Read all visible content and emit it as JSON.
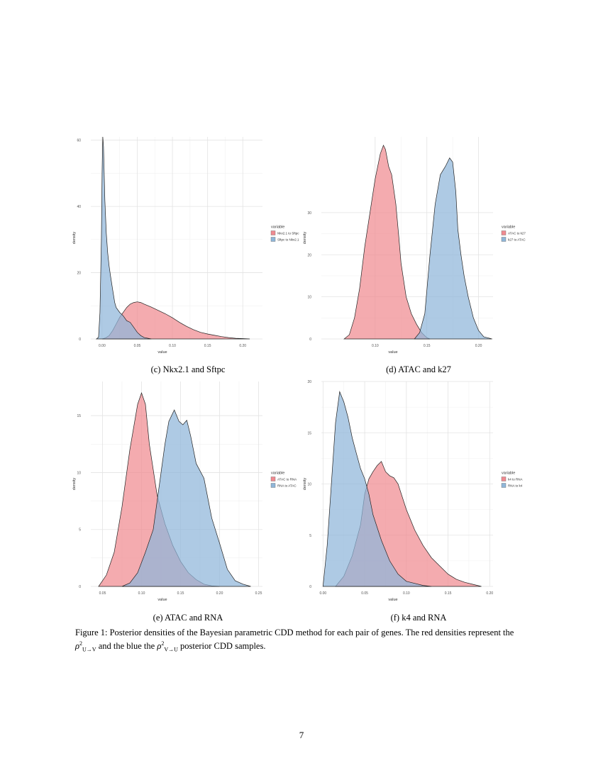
{
  "colors": {
    "red_fill": "#f08a90",
    "blue_fill": "#8fb6d9",
    "outline": "#222222",
    "grid": "#e3e3e3"
  },
  "panels": [
    {
      "subcaption": "(c) Nkx2.1 and Sftpc",
      "chart_data": {
        "type": "area",
        "xlabel": "value",
        "ylabel": "density",
        "xlim": [
          -0.016,
          0.228
        ],
        "ylim": [
          0,
          61
        ],
        "x_ticks": [
          0.0,
          0.05,
          0.1,
          0.15,
          0.2
        ],
        "x_tick_labels": [
          "0.00",
          "0.05",
          "0.10",
          "0.15",
          "0.20"
        ],
        "y_ticks": [
          0,
          20,
          40,
          60
        ],
        "y_tick_labels": [
          "0",
          "20",
          "40",
          "60"
        ],
        "legend": {
          "title": "variable",
          "position": "right",
          "entries": [
            "Nkx2.1 to Sftpc",
            "Sftpc to Nkx2.1"
          ]
        },
        "series": [
          {
            "name": "Nkx2.1 to Sftpc",
            "color": "red",
            "x": [
              0.0,
              0.005,
              0.01,
              0.015,
              0.02,
              0.025,
              0.03,
              0.035,
              0.04,
              0.045,
              0.05,
              0.055,
              0.06,
              0.07,
              0.08,
              0.09,
              0.1,
              0.11,
              0.12,
              0.13,
              0.14,
              0.15,
              0.16,
              0.17,
              0.18,
              0.19,
              0.2,
              0.21
            ],
            "y": [
              0,
              0.3,
              1.0,
              2.5,
              4.5,
              6.5,
              8.0,
              9.5,
              10.5,
              11.0,
              11.2,
              11.0,
              10.5,
              9.6,
              8.6,
              7.6,
              6.4,
              5.0,
              3.8,
              2.8,
              2.0,
              1.5,
              1.1,
              0.7,
              0.4,
              0.2,
              0.1,
              0
            ]
          },
          {
            "name": "Sftpc to Nkx2.1",
            "color": "blue",
            "x": [
              -0.008,
              -0.005,
              -0.003,
              -0.001,
              0.0,
              0.001,
              0.002,
              0.004,
              0.006,
              0.008,
              0.01,
              0.012,
              0.015,
              0.018,
              0.02,
              0.025,
              0.03,
              0.035,
              0.04,
              0.045,
              0.05,
              0.055,
              0.06,
              0.07
            ],
            "y": [
              0,
              0.5,
              8,
              30,
              50,
              61,
              58,
              42,
              32,
              26,
              22,
              19,
              15,
              11,
              9.5,
              8.0,
              7.0,
              5.5,
              5.0,
              3.5,
              2.0,
              1.0,
              0.4,
              0
            ]
          }
        ]
      }
    },
    {
      "subcaption": "(d) ATAC and k27",
      "chart_data": {
        "type": "area",
        "xlabel": "value",
        "ylabel": "density",
        "xlim": [
          0.048,
          0.214
        ],
        "ylim": [
          0,
          48
        ],
        "x_ticks": [
          0.1,
          0.15,
          0.2
        ],
        "x_tick_labels": [
          "0.10",
          "0.15",
          "0.20"
        ],
        "y_ticks": [
          0,
          10,
          20,
          30
        ],
        "y_tick_labels": [
          "0",
          "10",
          "20",
          "30"
        ],
        "legend": {
          "title": "variable",
          "position": "right",
          "entries": [
            "ATAC to k27",
            "k27 to ATAC"
          ]
        },
        "series": [
          {
            "name": "ATAC to k27",
            "color": "red",
            "x": [
              0.07,
              0.075,
              0.08,
              0.085,
              0.09,
              0.095,
              0.1,
              0.105,
              0.108,
              0.11,
              0.113,
              0.116,
              0.12,
              0.123,
              0.125,
              0.13,
              0.135,
              0.14,
              0.145,
              0.15,
              0.153
            ],
            "y": [
              0,
              1,
              5,
              12,
              22,
              30,
              38,
              44,
              46,
              45,
              41,
              39,
              32,
              24,
              18,
              10,
              6,
              3.5,
              1.5,
              0.3,
              0
            ]
          },
          {
            "name": "k27 to ATAC",
            "color": "blue",
            "x": [
              0.138,
              0.143,
              0.148,
              0.153,
              0.158,
              0.163,
              0.168,
              0.172,
              0.175,
              0.178,
              0.18,
              0.183,
              0.186,
              0.19,
              0.195,
              0.2,
              0.205,
              0.21,
              0.213
            ],
            "y": [
              0,
              1.5,
              6,
              20,
              32,
              39,
              41,
              43,
              42,
              35,
              26,
              20,
              15,
              10,
              5,
              2,
              0.5,
              0.2,
              0
            ]
          }
        ]
      }
    },
    {
      "subcaption": "(e) ATAC and RNA",
      "chart_data": {
        "type": "area",
        "xlabel": "value",
        "ylabel": "density",
        "xlim": [
          0.035,
          0.255
        ],
        "ylim": [
          0,
          18
        ],
        "x_ticks": [
          0.05,
          0.1,
          0.15,
          0.2,
          0.25
        ],
        "x_tick_labels": [
          "0.05",
          "0.10",
          "0.15",
          "0.20",
          "0.25"
        ],
        "y_ticks": [
          0,
          5,
          10,
          15
        ],
        "y_tick_labels": [
          "0",
          "5",
          "10",
          "15"
        ],
        "legend": {
          "title": "variable",
          "position": "right",
          "entries": [
            "ATAC to RNA",
            "RNA to ATAC"
          ]
        },
        "series": [
          {
            "name": "ATAC to RNA",
            "color": "red",
            "x": [
              0.045,
              0.055,
              0.065,
              0.075,
              0.085,
              0.095,
              0.1,
              0.105,
              0.11,
              0.12,
              0.13,
              0.14,
              0.15,
              0.16,
              0.17,
              0.18,
              0.19,
              0.2
            ],
            "y": [
              0,
              1,
              3,
              7,
              12,
              16,
              17,
              16,
              12.5,
              8,
              5.5,
              3.6,
              2.2,
              1.2,
              0.6,
              0.2,
              0.05,
              0
            ]
          },
          {
            "name": "RNA to ATAC",
            "color": "blue",
            "x": [
              0.075,
              0.085,
              0.095,
              0.105,
              0.115,
              0.125,
              0.13,
              0.135,
              0.142,
              0.148,
              0.153,
              0.158,
              0.163,
              0.17,
              0.18,
              0.19,
              0.2,
              0.21,
              0.22,
              0.23,
              0.24
            ],
            "y": [
              0,
              0.3,
              1.2,
              3,
              5,
              10,
              12.5,
              14.5,
              15.5,
              14.5,
              14.2,
              14.6,
              13.2,
              10.8,
              9.5,
              6,
              3.8,
              1.5,
              0.5,
              0.2,
              0
            ]
          }
        ]
      }
    },
    {
      "subcaption": "(f) k4 and RNA",
      "chart_data": {
        "type": "area",
        "xlabel": "value",
        "ylabel": "density",
        "xlim": [
          -0.002,
          0.204
        ],
        "ylim": [
          0,
          20
        ],
        "x_ticks": [
          0.0,
          0.05,
          0.1,
          0.15,
          0.2
        ],
        "x_tick_labels": [
          "0.00",
          "0.05",
          "0.10",
          "0.15",
          "0.20"
        ],
        "y_ticks": [
          0,
          5,
          10,
          15,
          20
        ],
        "y_tick_labels": [
          "0",
          "5",
          "10",
          "15",
          "20"
        ],
        "legend": {
          "title": "variable",
          "position": "right",
          "entries": [
            "k4 to RNA",
            "RNA to k4"
          ]
        },
        "series": [
          {
            "name": "k4 to RNA",
            "color": "red",
            "x": [
              0.015,
              0.025,
              0.035,
              0.045,
              0.05,
              0.055,
              0.06,
              0.065,
              0.07,
              0.075,
              0.08,
              0.085,
              0.09,
              0.1,
              0.11,
              0.12,
              0.13,
              0.14,
              0.15,
              0.16,
              0.17,
              0.18,
              0.19
            ],
            "y": [
              0,
              1,
              3,
              6,
              9,
              10.5,
              11.2,
              11.8,
              12.2,
              11.2,
              10.8,
              10.6,
              10,
              7.5,
              5.5,
              4,
              2.8,
              2,
              1.2,
              0.7,
              0.4,
              0.2,
              0
            ]
          },
          {
            "name": "RNA to k4",
            "color": "blue",
            "x": [
              0.0,
              0.005,
              0.01,
              0.015,
              0.02,
              0.025,
              0.03,
              0.035,
              0.04,
              0.045,
              0.05,
              0.055,
              0.06,
              0.07,
              0.08,
              0.09,
              0.1,
              0.11,
              0.12,
              0.13
            ],
            "y": [
              0,
              4,
              10,
              16,
              19,
              18,
              16.5,
              14.5,
              13,
              11.5,
              10.5,
              9,
              7,
              4.5,
              2.5,
              1.2,
              0.5,
              0.3,
              0.1,
              0
            ]
          }
        ]
      }
    }
  ],
  "caption": {
    "lead": "Figure 1: Posterior densities of the Bayesian parametric CDD method for each pair of genes. The red densities represent the ",
    "sym": "ρ",
    "sup": "2",
    "sub_uv": "U→V",
    "mid": " and the blue the ",
    "sub_vu": "V→U",
    "tail": " posterior CDD samples."
  },
  "page_number": "7"
}
